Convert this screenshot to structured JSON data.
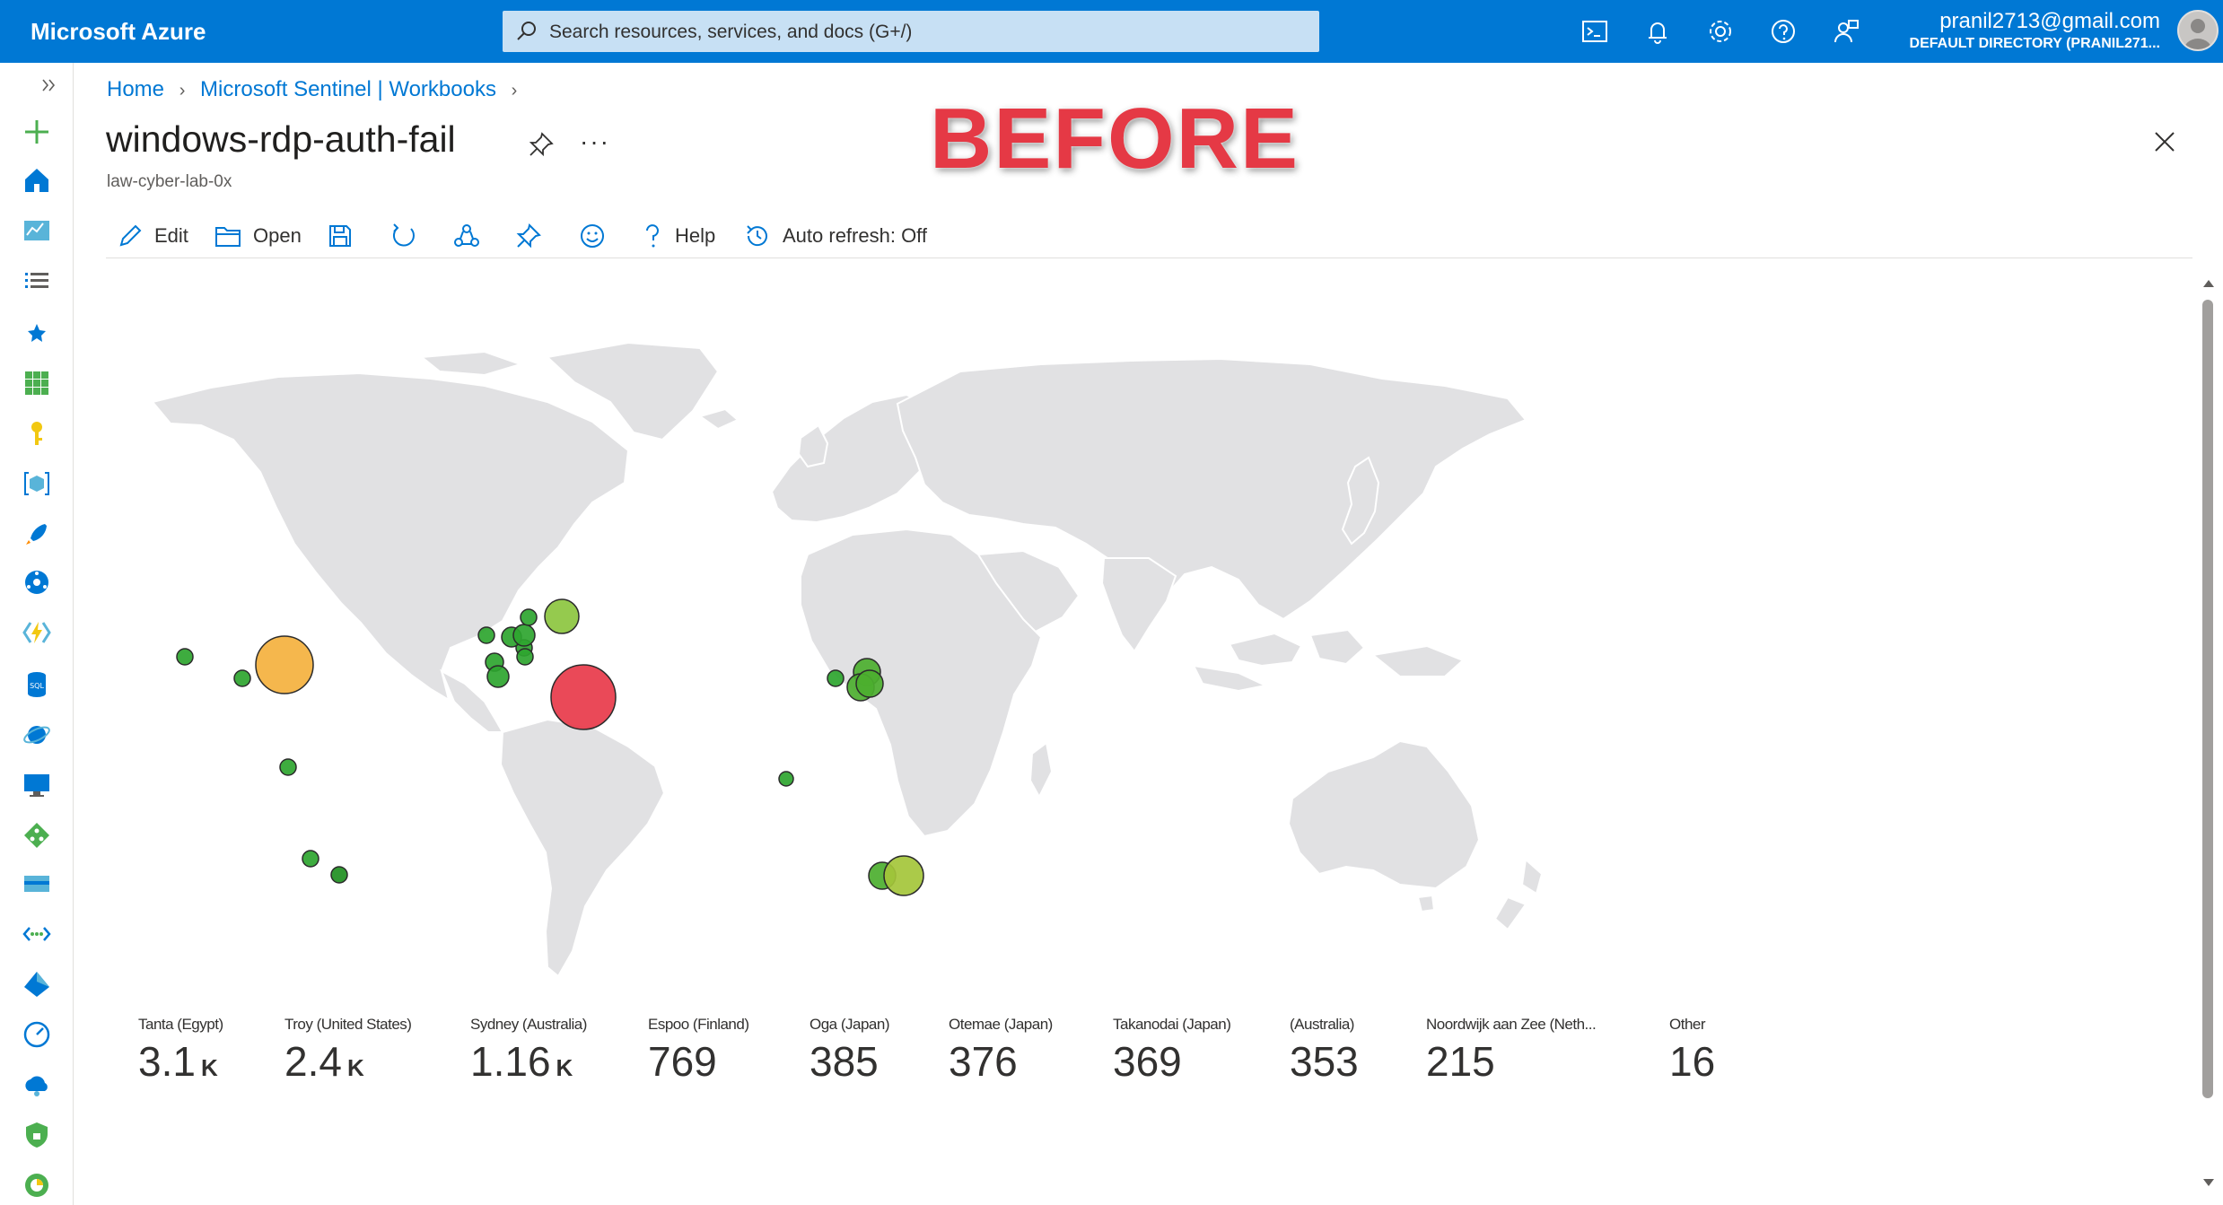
{
  "topbar": {
    "brand": "Microsoft Azure",
    "search_placeholder": "Search resources, services, and docs (G+/)",
    "account_email": "pranil2713@gmail.com",
    "account_directory": "DEFAULT DIRECTORY (PRANIL271..."
  },
  "breadcrumb": {
    "items": [
      "Home",
      "Microsoft Sentinel | Workbooks"
    ]
  },
  "page": {
    "title": "windows-rdp-auth-fail",
    "subtitle": "law-cyber-lab-0x",
    "annotation": "BEFORE"
  },
  "toolbar": {
    "edit": "Edit",
    "open": "Open",
    "help": "Help",
    "auto_refresh": "Auto refresh: Off"
  },
  "colors": {
    "azure_blue": "#0078d4",
    "bubble_high": "#e8394a",
    "bubble_mid": "#f4b13e",
    "bubble_low": "#2ea52f",
    "bubble_lowmid": "#9cc62c",
    "land": "#e1e1e3"
  },
  "tiles": [
    {
      "label": "Tanta (Egypt)",
      "value": "3.1",
      "unit": "K"
    },
    {
      "label": "Troy (United States)",
      "value": "2.4",
      "unit": "K"
    },
    {
      "label": "Sydney (Australia)",
      "value": "1.16",
      "unit": "K"
    },
    {
      "label": "Espoo (Finland)",
      "value": "769",
      "unit": ""
    },
    {
      "label": "Oga (Japan)",
      "value": "385",
      "unit": ""
    },
    {
      "label": "Otemae (Japan)",
      "value": "376",
      "unit": ""
    },
    {
      "label": "Takanodai (Japan)",
      "value": "369",
      "unit": ""
    },
    {
      "label": "(Australia)",
      "value": "353",
      "unit": ""
    },
    {
      "label": "Noordwijk aan Zee (Neth...",
      "value": "215",
      "unit": ""
    },
    {
      "label": "Other",
      "value": "16",
      "unit": ""
    }
  ]
}
